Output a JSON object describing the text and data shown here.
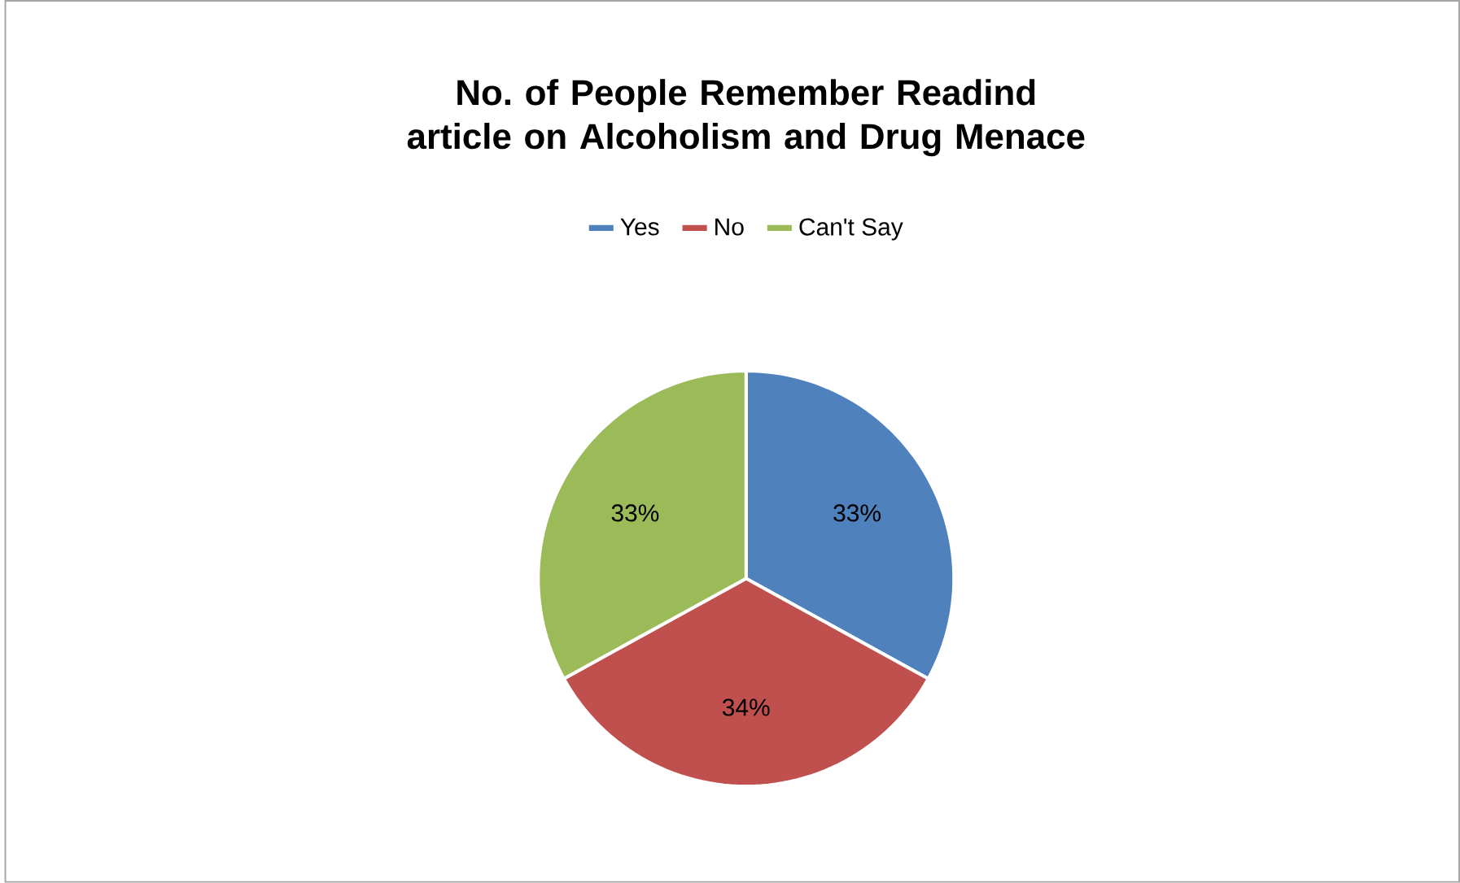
{
  "chart_data": {
    "type": "pie",
    "title": "No. of People Remember Readind article on Alcoholism and Drug Menace",
    "categories": [
      "Yes",
      "No",
      "Can't Say"
    ],
    "values": [
      33,
      34,
      33
    ],
    "value_labels": [
      "33%",
      "34%",
      "33%"
    ],
    "colors": [
      "#4f81bd",
      "#c0504d",
      "#9bbb59"
    ],
    "legend": "top"
  }
}
